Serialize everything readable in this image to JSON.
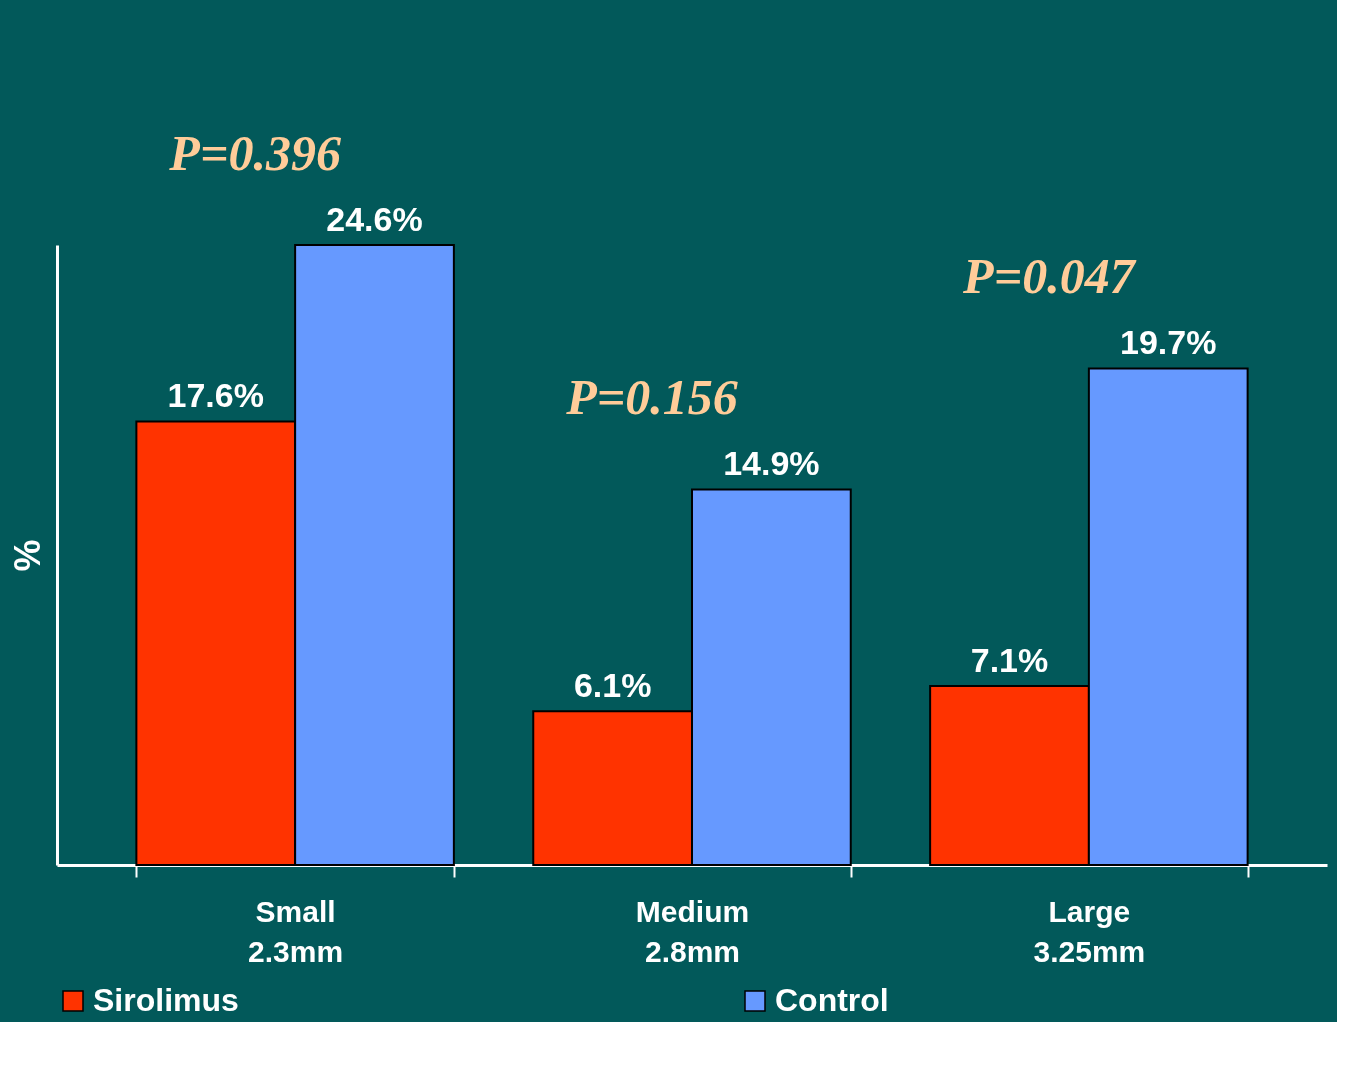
{
  "chart_data": {
    "type": "bar",
    "ylabel": "%",
    "categories": [
      "Small\n2.3mm",
      "Medium\n2.8mm",
      "Large\n3.25mm"
    ],
    "series": [
      {
        "name": "Sirolimus",
        "color": "#ff3300",
        "values": [
          17.6,
          6.1,
          7.1
        ],
        "value_labels": [
          "17.6%",
          "6.1%",
          "7.1%"
        ]
      },
      {
        "name": "Control",
        "color": "#6699ff",
        "values": [
          24.6,
          14.9,
          19.7
        ],
        "value_labels": [
          "24.6%",
          "14.9%",
          "19.7%"
        ]
      }
    ],
    "annotations": [
      "P=0.396",
      "P=0.156",
      "P=0.047"
    ],
    "legend": "bottom",
    "grid": false
  }
}
